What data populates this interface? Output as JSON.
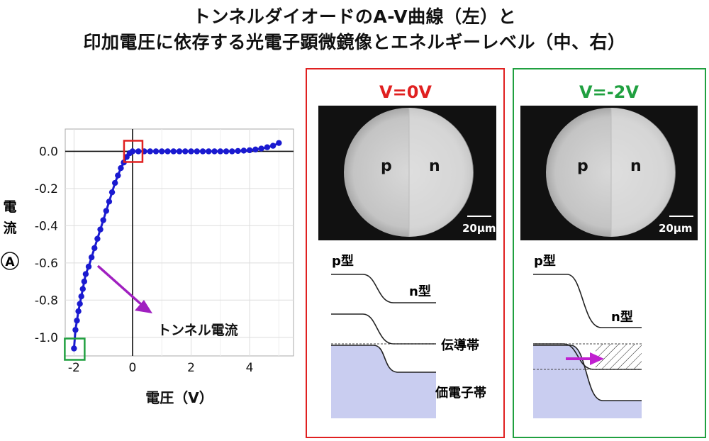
{
  "title": {
    "line1": "トンネルダイオードのA-V曲線（左）と",
    "line2": "印加電圧に依存する光電子顕微鏡像とエネルギーレベル（中、右）"
  },
  "chart_data": {
    "type": "line",
    "title": "",
    "xlabel": "電圧（V）",
    "ylabel": "電流（A）",
    "ylabel_chars": [
      "電",
      "流",
      "A"
    ],
    "xlim": [
      -2.3,
      5.5
    ],
    "ylim": [
      -1.1,
      0.12
    ],
    "x_ticks": [
      -2,
      0,
      2,
      4
    ],
    "x_tick_labels": [
      "-2",
      "0",
      "2",
      "4"
    ],
    "y_ticks": [
      0.0,
      -0.2,
      -0.4,
      -0.6,
      -0.8,
      -1.0
    ],
    "y_tick_labels": [
      "0.0",
      "-0.2",
      "-0.4",
      "-0.6",
      "-0.8",
      "-1.0"
    ],
    "grid": true,
    "series_color": "#1a1ad0",
    "series": [
      {
        "x": [
          -2.0,
          -1.95,
          -1.9,
          -1.85,
          -1.8,
          -1.75,
          -1.7,
          -1.65,
          -1.6,
          -1.5,
          -1.4,
          -1.3,
          -1.2,
          -1.1,
          -1.0,
          -0.9,
          -0.8,
          -0.7,
          -0.6,
          -0.5,
          -0.4,
          -0.3,
          -0.2,
          -0.1,
          0.0,
          0.2,
          0.4,
          0.6,
          0.8,
          1.0,
          1.2,
          1.4,
          1.6,
          1.8,
          2.0,
          2.2,
          2.4,
          2.6,
          2.8,
          3.0,
          3.2,
          3.4,
          3.6,
          3.8,
          4.0,
          4.2,
          4.4,
          4.6,
          4.8,
          5.0
        ],
        "y": [
          -1.06,
          -0.96,
          -0.91,
          -0.86,
          -0.82,
          -0.78,
          -0.74,
          -0.7,
          -0.66,
          -0.62,
          -0.57,
          -0.52,
          -0.47,
          -0.42,
          -0.37,
          -0.32,
          -0.27,
          -0.22,
          -0.17,
          -0.13,
          -0.09,
          -0.06,
          -0.03,
          -0.01,
          0.0,
          0.0,
          0.0,
          0.0,
          0.0,
          0.0,
          0.0,
          0.0,
          0.0,
          0.0,
          0.0,
          0.0,
          0.0,
          0.0,
          0.0,
          0.0,
          0.0,
          0.0,
          0.002,
          0.004,
          0.006,
          0.01,
          0.015,
          0.022,
          0.03,
          0.045
        ]
      }
    ],
    "annotations": {
      "tunnel_label": "トンネル電流",
      "arrow_color": "#a020c0",
      "red_box_color": "#e02020",
      "green_box_color": "#20a040"
    }
  },
  "panels": [
    {
      "voltage": "V=0V",
      "color": "#e02020",
      "p_label": "p",
      "n_label": "n",
      "scale": "20μm",
      "p_type": "p型",
      "n_type": "n型",
      "conduction_band": "伝導帯",
      "valence_band": "価電子帯"
    },
    {
      "voltage": "V=-2V",
      "color": "#20a040",
      "p_label": "p",
      "n_label": "n",
      "scale": "20μm",
      "p_type": "p型",
      "n_type": "n型"
    }
  ]
}
